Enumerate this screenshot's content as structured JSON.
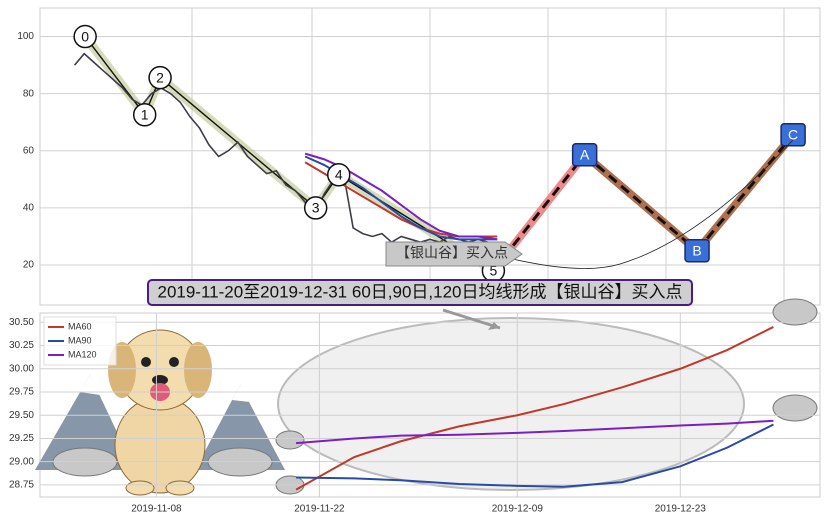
{
  "chart_data": [
    {
      "type": "line",
      "ylim": [
        6,
        110
      ],
      "yticks": [
        20,
        40,
        60,
        80,
        100
      ],
      "xlim": [
        -3.6,
        77.6
      ],
      "grid": true,
      "series": [
        {
          "color": "#3c3c4a",
          "x": [
            0,
            1,
            2,
            3,
            4,
            5,
            6,
            7,
            8,
            9,
            10,
            11,
            12,
            13,
            14,
            15,
            16,
            17,
            18,
            19,
            20,
            21,
            22,
            23,
            24,
            25,
            26,
            27,
            28,
            29,
            30,
            31,
            32,
            33,
            34,
            35,
            36,
            37,
            38,
            39,
            40,
            41,
            42,
            43
          ],
          "values": [
            90,
            94,
            91,
            88,
            85,
            82,
            78,
            76,
            80,
            82,
            80,
            77,
            72,
            68,
            62,
            58,
            60,
            63,
            58,
            55,
            52,
            53,
            48,
            46,
            42,
            38,
            45,
            50,
            52,
            33,
            31,
            30,
            31,
            28,
            30,
            29,
            28,
            29,
            28,
            30,
            29,
            28,
            29,
            28
          ]
        },
        {
          "color": "#c0392b",
          "x": [
            24,
            26,
            28,
            30,
            32,
            34,
            36,
            38,
            40,
            42,
            44
          ],
          "values": [
            56,
            52,
            48,
            44,
            40,
            36,
            33,
            31,
            30,
            30,
            30
          ]
        },
        {
          "color": "#2a4aa8",
          "x": [
            24,
            26,
            28,
            30,
            32,
            34,
            36,
            38,
            40,
            42,
            44
          ],
          "values": [
            58,
            55,
            51,
            47,
            42,
            37,
            33,
            30,
            29,
            29,
            29
          ]
        },
        {
          "color": "#7a1fc4",
          "x": [
            24,
            26,
            28,
            30,
            32,
            34,
            36,
            38,
            40,
            42,
            44
          ],
          "values": [
            59,
            57,
            54,
            50,
            46,
            41,
            36,
            32,
            30,
            30,
            29
          ]
        }
      ],
      "waves": [
        {
          "label": "0",
          "x": 1.1,
          "value": 100
        },
        {
          "label": "1",
          "x": 7.3,
          "value": 72.6
        },
        {
          "label": "2",
          "x": 8.9,
          "value": 85.6
        },
        {
          "label": "3",
          "x": 25.1,
          "value": 40
        },
        {
          "label": "4",
          "x": 27.5,
          "value": 51.6
        },
        {
          "label": "5",
          "x": 43.6,
          "value": 18
        },
        {
          "label": "A",
          "x": 53.1,
          "value": 58.6
        },
        {
          "label": "B",
          "x": 64.8,
          "value": 25
        },
        {
          "label": "C",
          "x": 74.8,
          "value": 65.6
        }
      ],
      "annotations": [
        "【银山谷】买入点",
        "2019-11-20至2019-12-31 60日,90日,120日均线形成【银山谷】买入点"
      ]
    },
    {
      "type": "line",
      "x": [
        "2019-11-20",
        "2019-11-25",
        "2019-11-29",
        "2019-12-04",
        "2019-12-09",
        "2019-12-13",
        "2019-12-18",
        "2019-12-23",
        "2019-12-27",
        "2019-12-31"
      ],
      "xlim": [
        "2019-10-29",
        "2020-01-04"
      ],
      "xticks": [
        "2019-11-08",
        "2019-11-22",
        "2019-12-09",
        "2019-12-23"
      ],
      "ylim": [
        28.62,
        30.6
      ],
      "yticks": [
        28.75,
        {
          "value": 29,
          "label": "29.00"
        },
        29.25,
        {
          "value": 29.5,
          "label": "29.50"
        },
        29.75,
        {
          "value": 30,
          "label": "30.00"
        },
        30.25,
        {
          "value": 30.5,
          "label": "30.50"
        }
      ],
      "grid": true,
      "legend": "upper left",
      "series": [
        {
          "name": "MA60",
          "color": "#c0392b",
          "values": [
            28.7,
            29.05,
            29.22,
            29.38,
            29.5,
            29.62,
            29.8,
            30.0,
            30.2,
            30.45
          ]
        },
        {
          "name": "MA90",
          "color": "#2a4aa8",
          "values": [
            28.83,
            28.82,
            28.8,
            28.76,
            28.74,
            28.73,
            28.78,
            28.95,
            29.15,
            29.4
          ]
        },
        {
          "name": "MA120",
          "color": "#7a1fc4",
          "values": [
            29.2,
            29.25,
            29.28,
            29.29,
            29.31,
            29.33,
            29.36,
            29.39,
            29.41,
            29.44
          ]
        }
      ]
    }
  ]
}
